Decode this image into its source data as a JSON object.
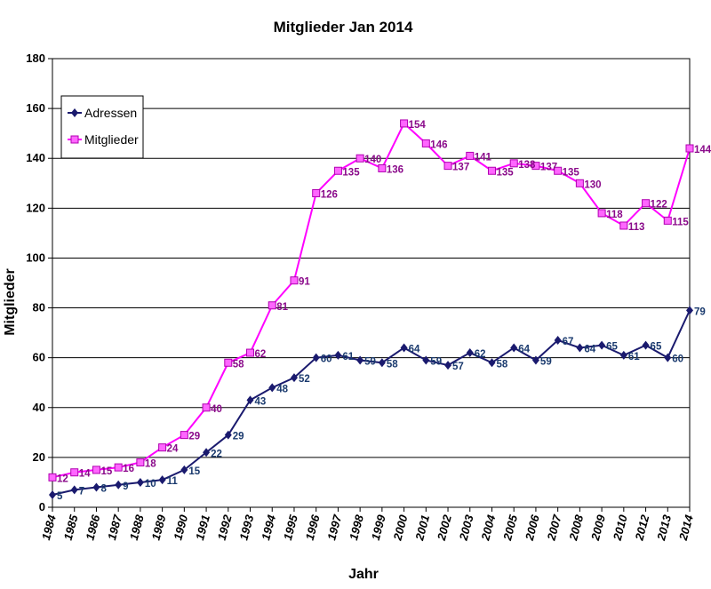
{
  "chart_data": {
    "type": "line",
    "title": "Mitglieder Jan 2014",
    "xlabel": "Jahr",
    "ylabel": "Mitglieder",
    "ylim": [
      0,
      180
    ],
    "yticks": [
      0,
      20,
      40,
      60,
      80,
      100,
      120,
      140,
      160,
      180
    ],
    "grid": true,
    "legend_position": "top-left",
    "categories": [
      "1984",
      "1985",
      "1986",
      "1987",
      "1988",
      "1989",
      "1990",
      "1991",
      "1992",
      "1993",
      "1994",
      "1995",
      "1996",
      "1997",
      "1998",
      "1999",
      "2000",
      "2001",
      "2002",
      "2003",
      "2004",
      "2005",
      "2006",
      "2007",
      "2008",
      "2009",
      "2010",
      "2012",
      "2013",
      "2014"
    ],
    "series": [
      {
        "name": "Adressen",
        "color": "#1a1a6e",
        "marker": "diamond",
        "values": [
          5,
          7,
          8,
          9,
          10,
          11,
          15,
          22,
          29,
          43,
          48,
          52,
          60,
          61,
          59,
          58,
          64,
          59,
          57,
          62,
          58,
          64,
          59,
          67,
          64,
          65,
          61,
          65,
          60,
          79
        ]
      },
      {
        "name": "Mitglieder",
        "color": "#ff00ff",
        "marker": "square",
        "values": [
          12,
          14,
          15,
          16,
          18,
          24,
          29,
          40,
          58,
          62,
          81,
          91,
          126,
          135,
          140,
          136,
          154,
          146,
          137,
          141,
          135,
          138,
          137,
          135,
          130,
          118,
          113,
          122,
          115,
          144
        ]
      }
    ]
  }
}
